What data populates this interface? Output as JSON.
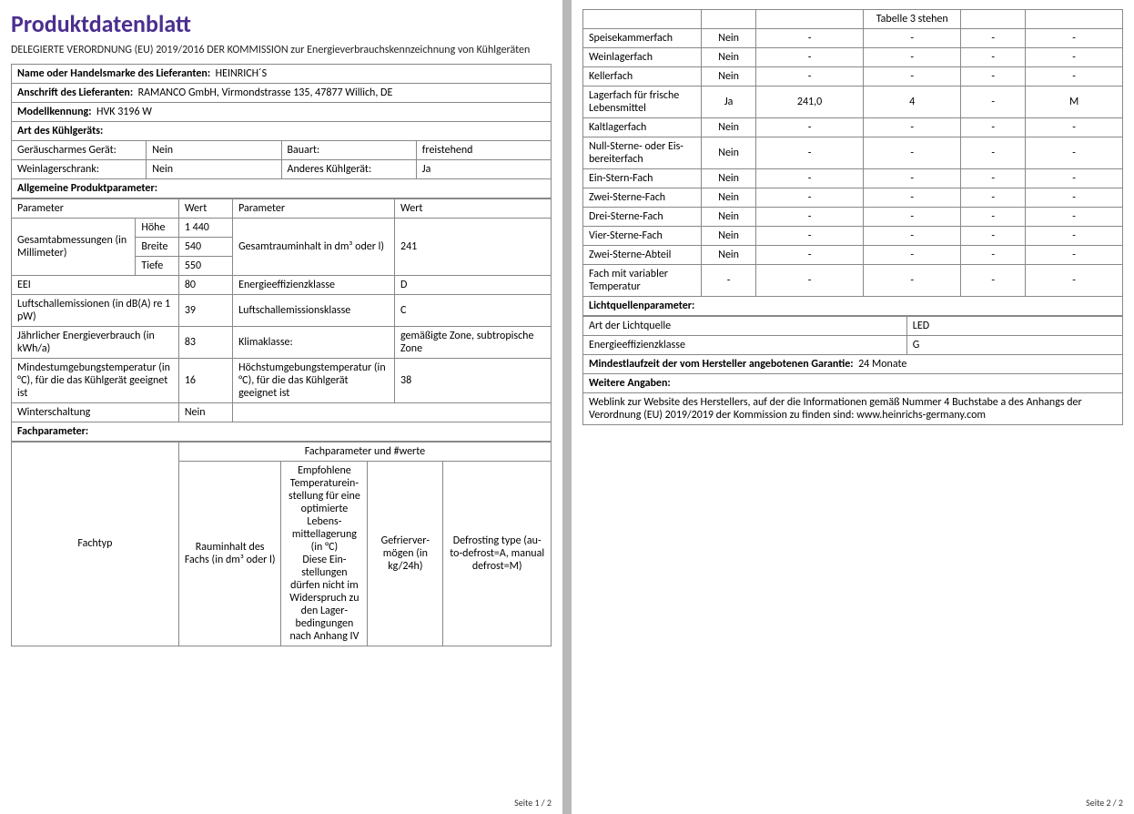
{
  "colors": {
    "title": "#4b2f8f",
    "border": "#888888",
    "text": "#222222",
    "bg": "#ffffff"
  },
  "fonts": {
    "title_size": 26,
    "body_size": 12,
    "footer_size": 10
  },
  "title": "Produktdatenblatt",
  "subtitle": "DELEGIERTE VERORDNUNG (EU) 2019/2016 DER KOMMISSION zur Energieverbrauchskennzeichnung von Kühlgeräten",
  "supplier_name_label": "Name oder Handelsmarke des Lieferanten:",
  "supplier_name_value": "HEINRICH´S",
  "supplier_addr_label": "Anschrift des Lieferanten:",
  "supplier_addr_value": "RAMANCO GmbH, Virmondstrasse 135, 47877 Willich, DE",
  "model_label": "Modellkennung:",
  "model_value": "HVK 3196 W",
  "type_header": "Art des Kühlgeräts:",
  "type_rows": [
    {
      "l1": "Geräuscharmes Gerät:",
      "v1": "Nein",
      "l2": "Bauart:",
      "v2": "freistehend"
    },
    {
      "l1": "Weinlagerschrank:",
      "v1": "Nein",
      "l2": "Anderes Kühlgerät:",
      "v2": "Ja"
    }
  ],
  "gen_header": "Allgemeine Produktparameter:",
  "param_hdr": {
    "p": "Parameter",
    "w": "Wert"
  },
  "dims_label": "Gesamtabmessungen (in Millimeter)",
  "dims": {
    "h_l": "Höhe",
    "h_v": "1 440",
    "b_l": "Brei­te",
    "b_v": "540",
    "t_l": "Tiefe",
    "t_v": "550"
  },
  "vol_label": "Gesamtrauminhalt in dm³ oder l)",
  "vol_value": "241",
  "gen_rows": [
    {
      "l1": "EEI",
      "v1": "80",
      "l2": "Energieeffizienzklasse",
      "v2": "D"
    },
    {
      "l1": "Luftschallemissionen (in dB(A) re 1 pW)",
      "v1": "39",
      "l2": "Luftschallemissionsklasse",
      "v2": "C"
    },
    {
      "l1": "Jährlicher Energieverbrauch (in kWh/a)",
      "v1": "83",
      "l2": "Klimaklasse:",
      "v2": "gemäßigte Zone, sub­tropische Zone"
    },
    {
      "l1": "Mindestumgebungstemperatur (in °C), für die das Kühlgerät ge­eignet ist",
      "v1": "16",
      "l2": "Höchstumgebungstempe­ratur (in °C), für die das Kühlgerät geeignet ist",
      "v2": "38"
    }
  ],
  "winter": {
    "l": "Winterschaltung",
    "v": "Nein"
  },
  "fach_header": "Fachparameter:",
  "fach_group_hdr": "Fachparameter und #werte",
  "fach_cols": {
    "c1": "Fachtyp",
    "c2": "Rauminhalt des Fachs (in dm³ oder l)",
    "c3_top": "Empfohle­ne Tempe­raturein­stellung für eine optimier­te Lebens­mittellage­rung (in °C)",
    "c3_bot": "Diese Ein­stellungen dürfen nicht im Wider­spruch zu den Lager­bedingun­gen nach Anhang IV",
    "c3_cont": "Tabelle 3 stehen",
    "c4": "Gefrierver­mögen (in kg/24h)",
    "c5": "Defrosting type (au­to-defrost=A, ma­nual defrost=M)"
  },
  "compartments": [
    {
      "name": "Speisekammerfach",
      "present": "Nein",
      "vol": "-",
      "temp": "-",
      "freeze": "-",
      "defrost": "-"
    },
    {
      "name": "Weinlagerfach",
      "present": "Nein",
      "vol": "-",
      "temp": "-",
      "freeze": "-",
      "defrost": "-"
    },
    {
      "name": "Kellerfach",
      "present": "Nein",
      "vol": "-",
      "temp": "-",
      "freeze": "-",
      "defrost": "-"
    },
    {
      "name": "Lagerfach für frische Lebensmittel",
      "present": "Ja",
      "vol": "241,0",
      "temp": "4",
      "freeze": "-",
      "defrost": "M"
    },
    {
      "name": "Kaltlagerfach",
      "present": "Nein",
      "vol": "-",
      "temp": "-",
      "freeze": "-",
      "defrost": "-"
    },
    {
      "name": "Null-Sterne- oder Eis­bereiterfach",
      "present": "Nein",
      "vol": "-",
      "temp": "-",
      "freeze": "-",
      "defrost": "-"
    },
    {
      "name": "Ein-Stern-Fach",
      "present": "Nein",
      "vol": "-",
      "temp": "-",
      "freeze": "-",
      "defrost": "-"
    },
    {
      "name": "Zwei-Sterne-Fach",
      "present": "Nein",
      "vol": "-",
      "temp": "-",
      "freeze": "-",
      "defrost": "-"
    },
    {
      "name": "Drei-Sterne-Fach",
      "present": "Nein",
      "vol": "-",
      "temp": "-",
      "freeze": "-",
      "defrost": "-"
    },
    {
      "name": "Vier-Sterne-Fach",
      "present": "Nein",
      "vol": "-",
      "temp": "-",
      "freeze": "-",
      "defrost": "-"
    },
    {
      "name": "Zwei-Sterne-Abteil",
      "present": "Nein",
      "vol": "-",
      "temp": "-",
      "freeze": "-",
      "defrost": "-"
    },
    {
      "name": "Fach mit variabler Temperatur",
      "present": "-",
      "vol": "-",
      "temp": "-",
      "freeze": "-",
      "defrost": "-"
    }
  ],
  "light_header": "Lichtquellenparameter:",
  "light_rows": [
    {
      "l": "Art der Lichtquelle",
      "v": "LED"
    },
    {
      "l": "Energieeffizienzklasse",
      "v": "G"
    }
  ],
  "warranty_label": "Mindestlaufzeit der vom Hersteller angebotenen Garantie:",
  "warranty_value": "24 Monate",
  "more_header": "Weitere Angaben:",
  "more_text": "Weblink zur Website des Herstellers, auf der die Informationen gemäß Nummer 4 Buchstabe a des Anhangs der Verordnung (EU) 2019/2019 der Kommission zu finden sind:   www.heinrichs-germany.com",
  "footer1": "Seite 1 / 2",
  "footer2": "Seite 2 / 2"
}
